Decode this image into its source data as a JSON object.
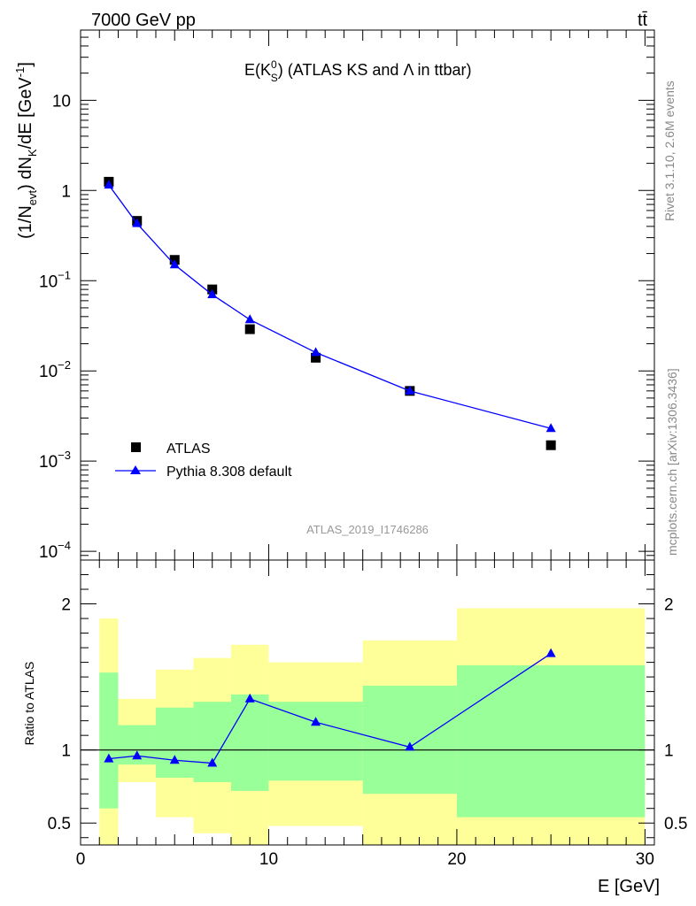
{
  "header": {
    "left_label": "7000 GeV pp",
    "right_label": "tt̄"
  },
  "side_labels": {
    "rivet": "Rivet 3.1.10,  2.6M events",
    "mcplots": "mcplots.cern.ch [arXiv:1306.3436]"
  },
  "analysis_id": "ATLAS_2019_I1746286",
  "chart_data": [
    {
      "type": "scatter",
      "title": "E(K",
      "title_sup": "0",
      "title_sub": "S",
      "title_rest": ") (ATLAS KS and Λ in ttbar)",
      "ylabel": "(1/N",
      "ylabel_sub1": "evt",
      "ylabel_mid": ") dN",
      "ylabel_sub2": "K",
      "ylabel_rest": "/dE [GeV",
      "ylabel_sup": "-1",
      "ylabel_end": "]",
      "yscale": "log",
      "ylim": [
        8e-05,
        60
      ],
      "xlim": [
        0,
        30.5
      ],
      "y_ticks": [
        {
          "v": 10,
          "base": "10",
          "exp": ""
        },
        {
          "v": 1,
          "base": "1",
          "exp": ""
        },
        {
          "v": 0.1,
          "base": "10",
          "exp": "−1"
        },
        {
          "v": 0.01,
          "base": "10",
          "exp": "−2"
        },
        {
          "v": 0.001,
          "base": "10",
          "exp": "−3"
        },
        {
          "v": 0.0001,
          "base": "10",
          "exp": "−4"
        }
      ],
      "legend_position": "bottom-left",
      "series": [
        {
          "name": "ATLAS",
          "marker": "square",
          "color": "#000000",
          "x": [
            1.5,
            3,
            5,
            7,
            9,
            12.5,
            17.5,
            25
          ],
          "y": [
            1.25,
            0.46,
            0.17,
            0.08,
            0.029,
            0.014,
            0.006,
            0.0015
          ]
        },
        {
          "name": "Pythia 8.308 default",
          "marker": "triangle",
          "color": "#0000ff",
          "x": [
            1.5,
            3,
            5,
            7,
            9,
            12.5,
            17.5,
            25
          ],
          "y": [
            1.15,
            0.43,
            0.15,
            0.07,
            0.037,
            0.016,
            0.006,
            0.0023
          ]
        }
      ]
    },
    {
      "type": "line",
      "xlabel": "E [GeV]",
      "ylabel": "Ratio to ATLAS",
      "xlim": [
        0,
        30.5
      ],
      "ylim": [
        0.35,
        2.3
      ],
      "x_ticks": [
        0,
        10,
        20,
        30
      ],
      "y_ticks": [
        0.5,
        1,
        2
      ],
      "reference_line": 1,
      "bands": {
        "edges": [
          1,
          2,
          4,
          6,
          8,
          10,
          15,
          20,
          30
        ],
        "yellow_low": [
          0.0,
          0.78,
          0.54,
          0.43,
          0.0,
          0.48,
          0.0,
          0.0
        ],
        "yellow_high": [
          1.9,
          1.35,
          1.55,
          1.63,
          1.72,
          1.6,
          1.75,
          1.97
        ],
        "green_low": [
          0.6,
          0.9,
          0.81,
          0.78,
          0.72,
          0.79,
          0.7,
          0.54
        ],
        "green_high": [
          1.53,
          1.17,
          1.29,
          1.33,
          1.38,
          1.33,
          1.44,
          1.58
        ]
      },
      "series": [
        {
          "name": "Pythia 8.308 default",
          "color": "#0000ff",
          "x": [
            1.5,
            3,
            5,
            7,
            9,
            12.5,
            17.5,
            25
          ],
          "y": [
            0.94,
            0.96,
            0.93,
            0.91,
            1.35,
            1.19,
            1.02,
            1.66
          ]
        }
      ]
    }
  ],
  "colors": {
    "yellow_band": "#ffff99",
    "green_band": "#99ff99"
  }
}
